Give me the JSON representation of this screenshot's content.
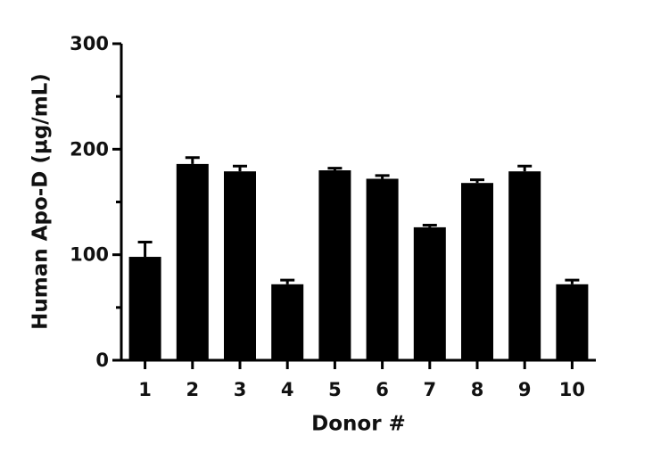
{
  "chart_data": {
    "type": "bar",
    "xlabel": "Donor #",
    "ylabel": "Human Apo-D (µg/mL)",
    "categories": [
      "1",
      "2",
      "3",
      "4",
      "5",
      "6",
      "7",
      "8",
      "9",
      "10"
    ],
    "values": [
      98,
      186,
      179,
      72,
      180,
      172,
      126,
      168,
      179,
      72
    ],
    "errors": [
      14,
      6,
      5,
      4,
      2,
      3,
      2,
      3,
      5,
      4
    ],
    "color": "#000000",
    "ylim": [
      0,
      300
    ],
    "yticks": [
      0,
      100,
      200,
      300
    ],
    "yminor_ticks": [
      50,
      150,
      250
    ]
  }
}
